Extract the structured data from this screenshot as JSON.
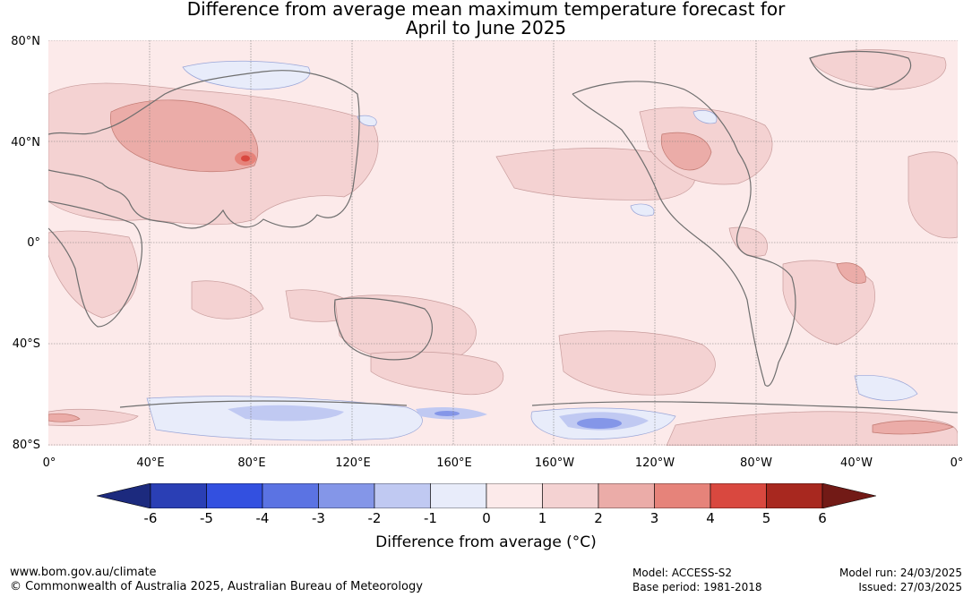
{
  "title_line1": "Difference from average mean maximum temperature forecast for",
  "title_line2": "April to June 2025",
  "map": {
    "lat_labels": [
      "80°N",
      "40°N",
      "0°",
      "40°S",
      "80°S"
    ],
    "lon_labels": [
      "0°",
      "40°E",
      "80°E",
      "120°E",
      "160°E",
      "160°W",
      "120°W",
      "80°W",
      "40°W",
      "0°"
    ],
    "background_color": "#fceaea"
  },
  "colorbar": {
    "ticks": [
      "-6",
      "-5",
      "-4",
      "-3",
      "-2",
      "-1",
      "0",
      "1",
      "2",
      "3",
      "4",
      "5",
      "6"
    ],
    "colors": [
      "#1c2a7e",
      "#2a3fb5",
      "#3350e0",
      "#5b73e3",
      "#8496e8",
      "#c0c9f2",
      "#e8ecfa",
      "#fceaea",
      "#f4d2d2",
      "#ebaca8",
      "#e6837a",
      "#d9483f",
      "#a8281f",
      "#721a16"
    ],
    "label": "Difference from average (°C)"
  },
  "footer": {
    "url": "www.bom.gov.au/climate",
    "copyright": "© Commonwealth of Australia 2025, Australian Bureau of Meteorology",
    "model": "Model: ACCESS-S2",
    "base_period": "Base period: 1981-2018",
    "model_run": "Model run: 24/03/2025",
    "issued": "Issued: 27/03/2025"
  }
}
